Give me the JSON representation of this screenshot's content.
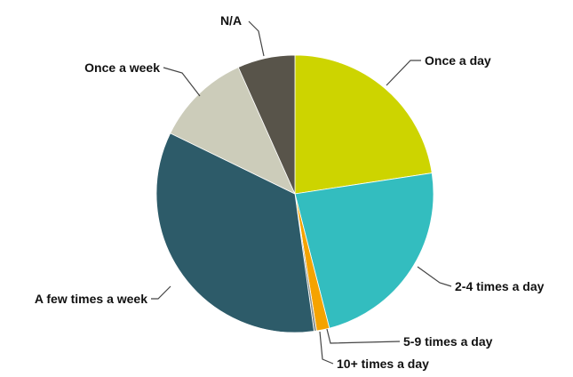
{
  "chart_data": {
    "type": "pie",
    "title": "",
    "start_angle_deg": 0,
    "direction": "clockwise",
    "slices": [
      {
        "label": "Once a day",
        "value": 22.6,
        "color": "#cdd400"
      },
      {
        "label": "2-4 times a day",
        "value": 23.4,
        "color": "#33bdbf"
      },
      {
        "label": "5-9 times a day",
        "value": 1.5,
        "color": "#f5a300"
      },
      {
        "label": "10+ times a day",
        "value": 0.3,
        "color": "#8a8f88"
      },
      {
        "label": "A few times a week",
        "value": 34.4,
        "color": "#2d5b69"
      },
      {
        "label": "Once a week",
        "value": 11.1,
        "color": "#ccccba"
      },
      {
        "label": "N/A",
        "value": 6.7,
        "color": "#58544a"
      }
    ],
    "legend": "none"
  }
}
